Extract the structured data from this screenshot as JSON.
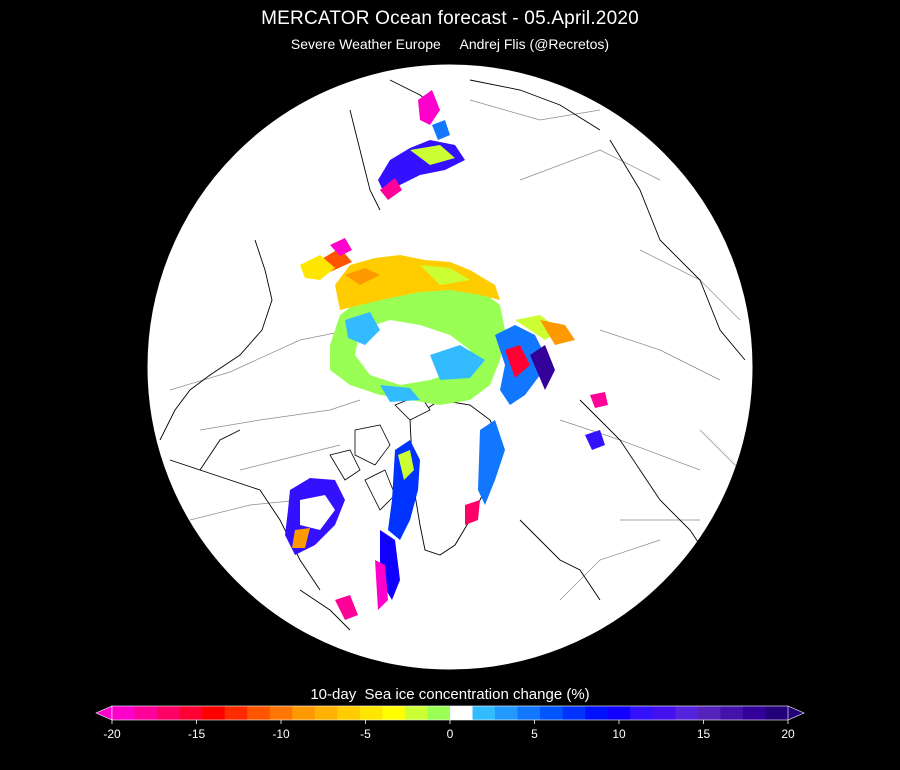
{
  "header": {
    "title": "MERCATOR Ocean forecast  -  05.April.2020",
    "subtitle": "Severe Weather Europe     Andrej Flis (@Recretos)"
  },
  "legend": {
    "title": "10-day  Sea ice concentration change (%)",
    "min": -20,
    "max": 20,
    "ticks": [
      "-20",
      "-15",
      "-10",
      "-5",
      "0",
      "5",
      "10",
      "15",
      "20"
    ],
    "tick_values": [
      -20,
      -15,
      -10,
      -5,
      0,
      5,
      10,
      15,
      20
    ],
    "colors": [
      "#ff00cc",
      "#ff0099",
      "#ff0066",
      "#ff0033",
      "#ff0000",
      "#ff2a00",
      "#ff5500",
      "#ff7700",
      "#ff9900",
      "#ffb300",
      "#ffcc00",
      "#ffe600",
      "#ffff00",
      "#ccff33",
      "#99ff55",
      "#ffffff",
      "#33bbff",
      "#2299ff",
      "#1177ff",
      "#0055ff",
      "#0033ff",
      "#0011ff",
      "#1100ff",
      "#3311ff",
      "#4411ee",
      "#5522dd",
      "#5522bb",
      "#4411aa",
      "#330099",
      "#220077"
    ]
  },
  "map": {
    "projection": "north-polar-stereographic",
    "background": "#ffffff",
    "coastline_color": "#000000",
    "border_color": "#888888"
  }
}
